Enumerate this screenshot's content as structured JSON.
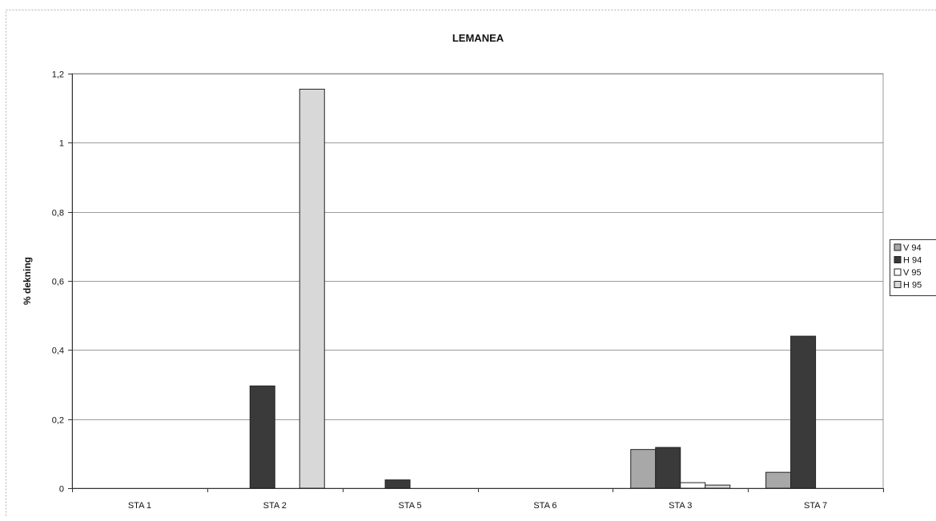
{
  "chart_data": {
    "type": "bar",
    "title": "LEMANEA",
    "ylabel": "% dekning",
    "xlabel": "",
    "ylim": [
      0,
      1.2
    ],
    "yticks": [
      0,
      0.2,
      0.4,
      0.6,
      0.8,
      1,
      1.2
    ],
    "ytick_labels": [
      "0",
      "0,2",
      "0,4",
      "0,6",
      "0,8",
      "1",
      "1,2"
    ],
    "categories": [
      "STA 1",
      "STA 2",
      "STA 5",
      "STA 6",
      "STA 3",
      "STA 7"
    ],
    "grid": true,
    "legend_position": "right",
    "series": [
      {
        "name": "V 94",
        "color": "#a8a8a8",
        "values": [
          0,
          0,
          0,
          0,
          0.112,
          0.046
        ]
      },
      {
        "name": "H 94",
        "color": "#3a3a3a",
        "values": [
          0,
          0.296,
          0.024,
          0,
          0.118,
          0.44
        ]
      },
      {
        "name": "V 95",
        "color": "#ffffff",
        "values": [
          0,
          0,
          0,
          0,
          0.016,
          0
        ]
      },
      {
        "name": "H 95",
        "color": "#d8d8d8",
        "values": [
          0,
          1.155,
          0,
          0,
          0.009,
          0
        ]
      }
    ]
  }
}
